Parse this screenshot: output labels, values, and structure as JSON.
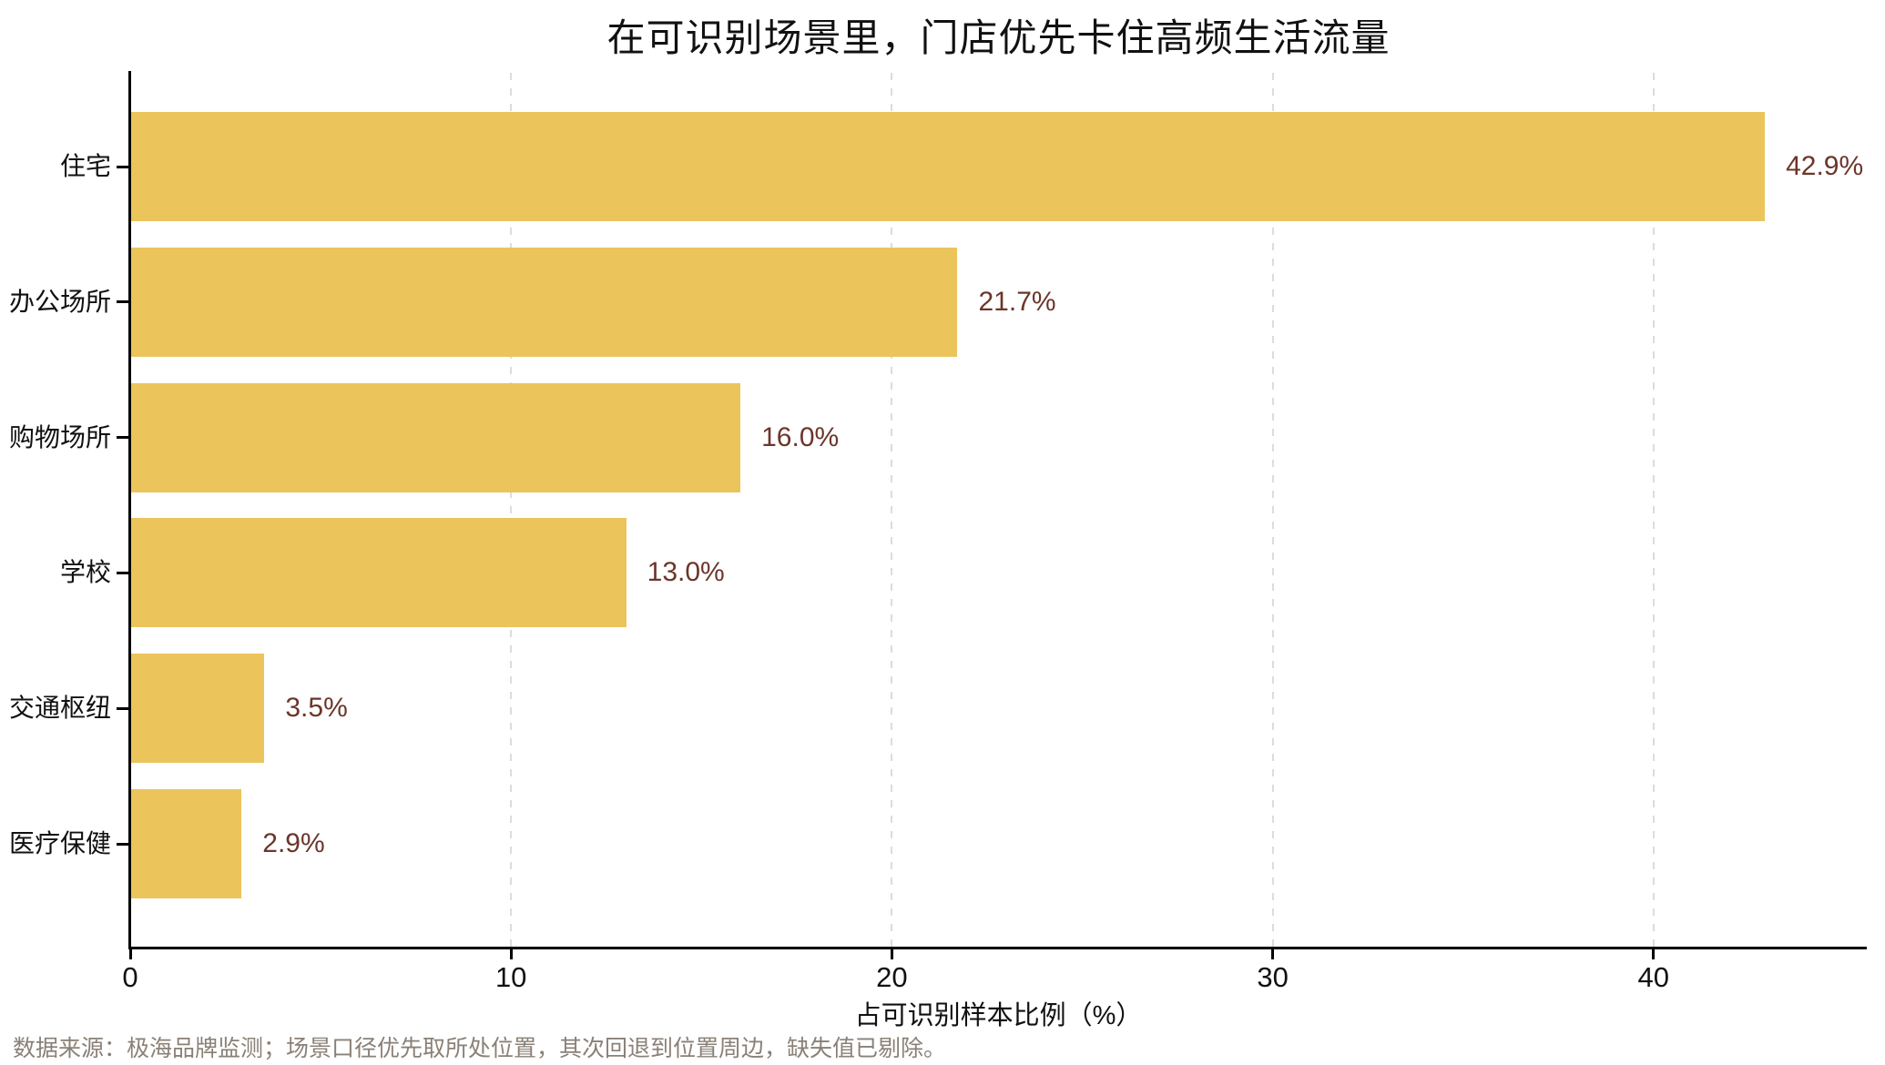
{
  "chart_data": {
    "type": "bar",
    "orientation": "horizontal",
    "title": "在可识别场景里，门店优先卡住高频生活流量",
    "categories": [
      "住宅",
      "办公场所",
      "购物场所",
      "学校",
      "交通枢纽",
      "医疗保健"
    ],
    "values": [
      42.9,
      21.7,
      16.0,
      13.0,
      3.5,
      2.9
    ],
    "value_labels": [
      "42.9%",
      "21.7%",
      "16.0%",
      "13.0%",
      "3.5%",
      "2.9%"
    ],
    "xlabel": "占可识别样本比例（%）",
    "xlim": [
      0,
      45.6
    ],
    "xticks": [
      0,
      10,
      20,
      30,
      40
    ],
    "grid": "vertical-dashed",
    "legend": "none",
    "source_note": "数据来源：极海品牌监测；场景口径优先取所处位置，其次回退到位置周边，缺失值已剔除。",
    "colors": {
      "bar": "#ecc45c",
      "value_label": "#6c352a",
      "axis": "#000000",
      "grid": "#dcdcdc",
      "title": "#111111",
      "tick_label": "#111111",
      "source": "#8a8076",
      "background": "#ffffff"
    }
  }
}
